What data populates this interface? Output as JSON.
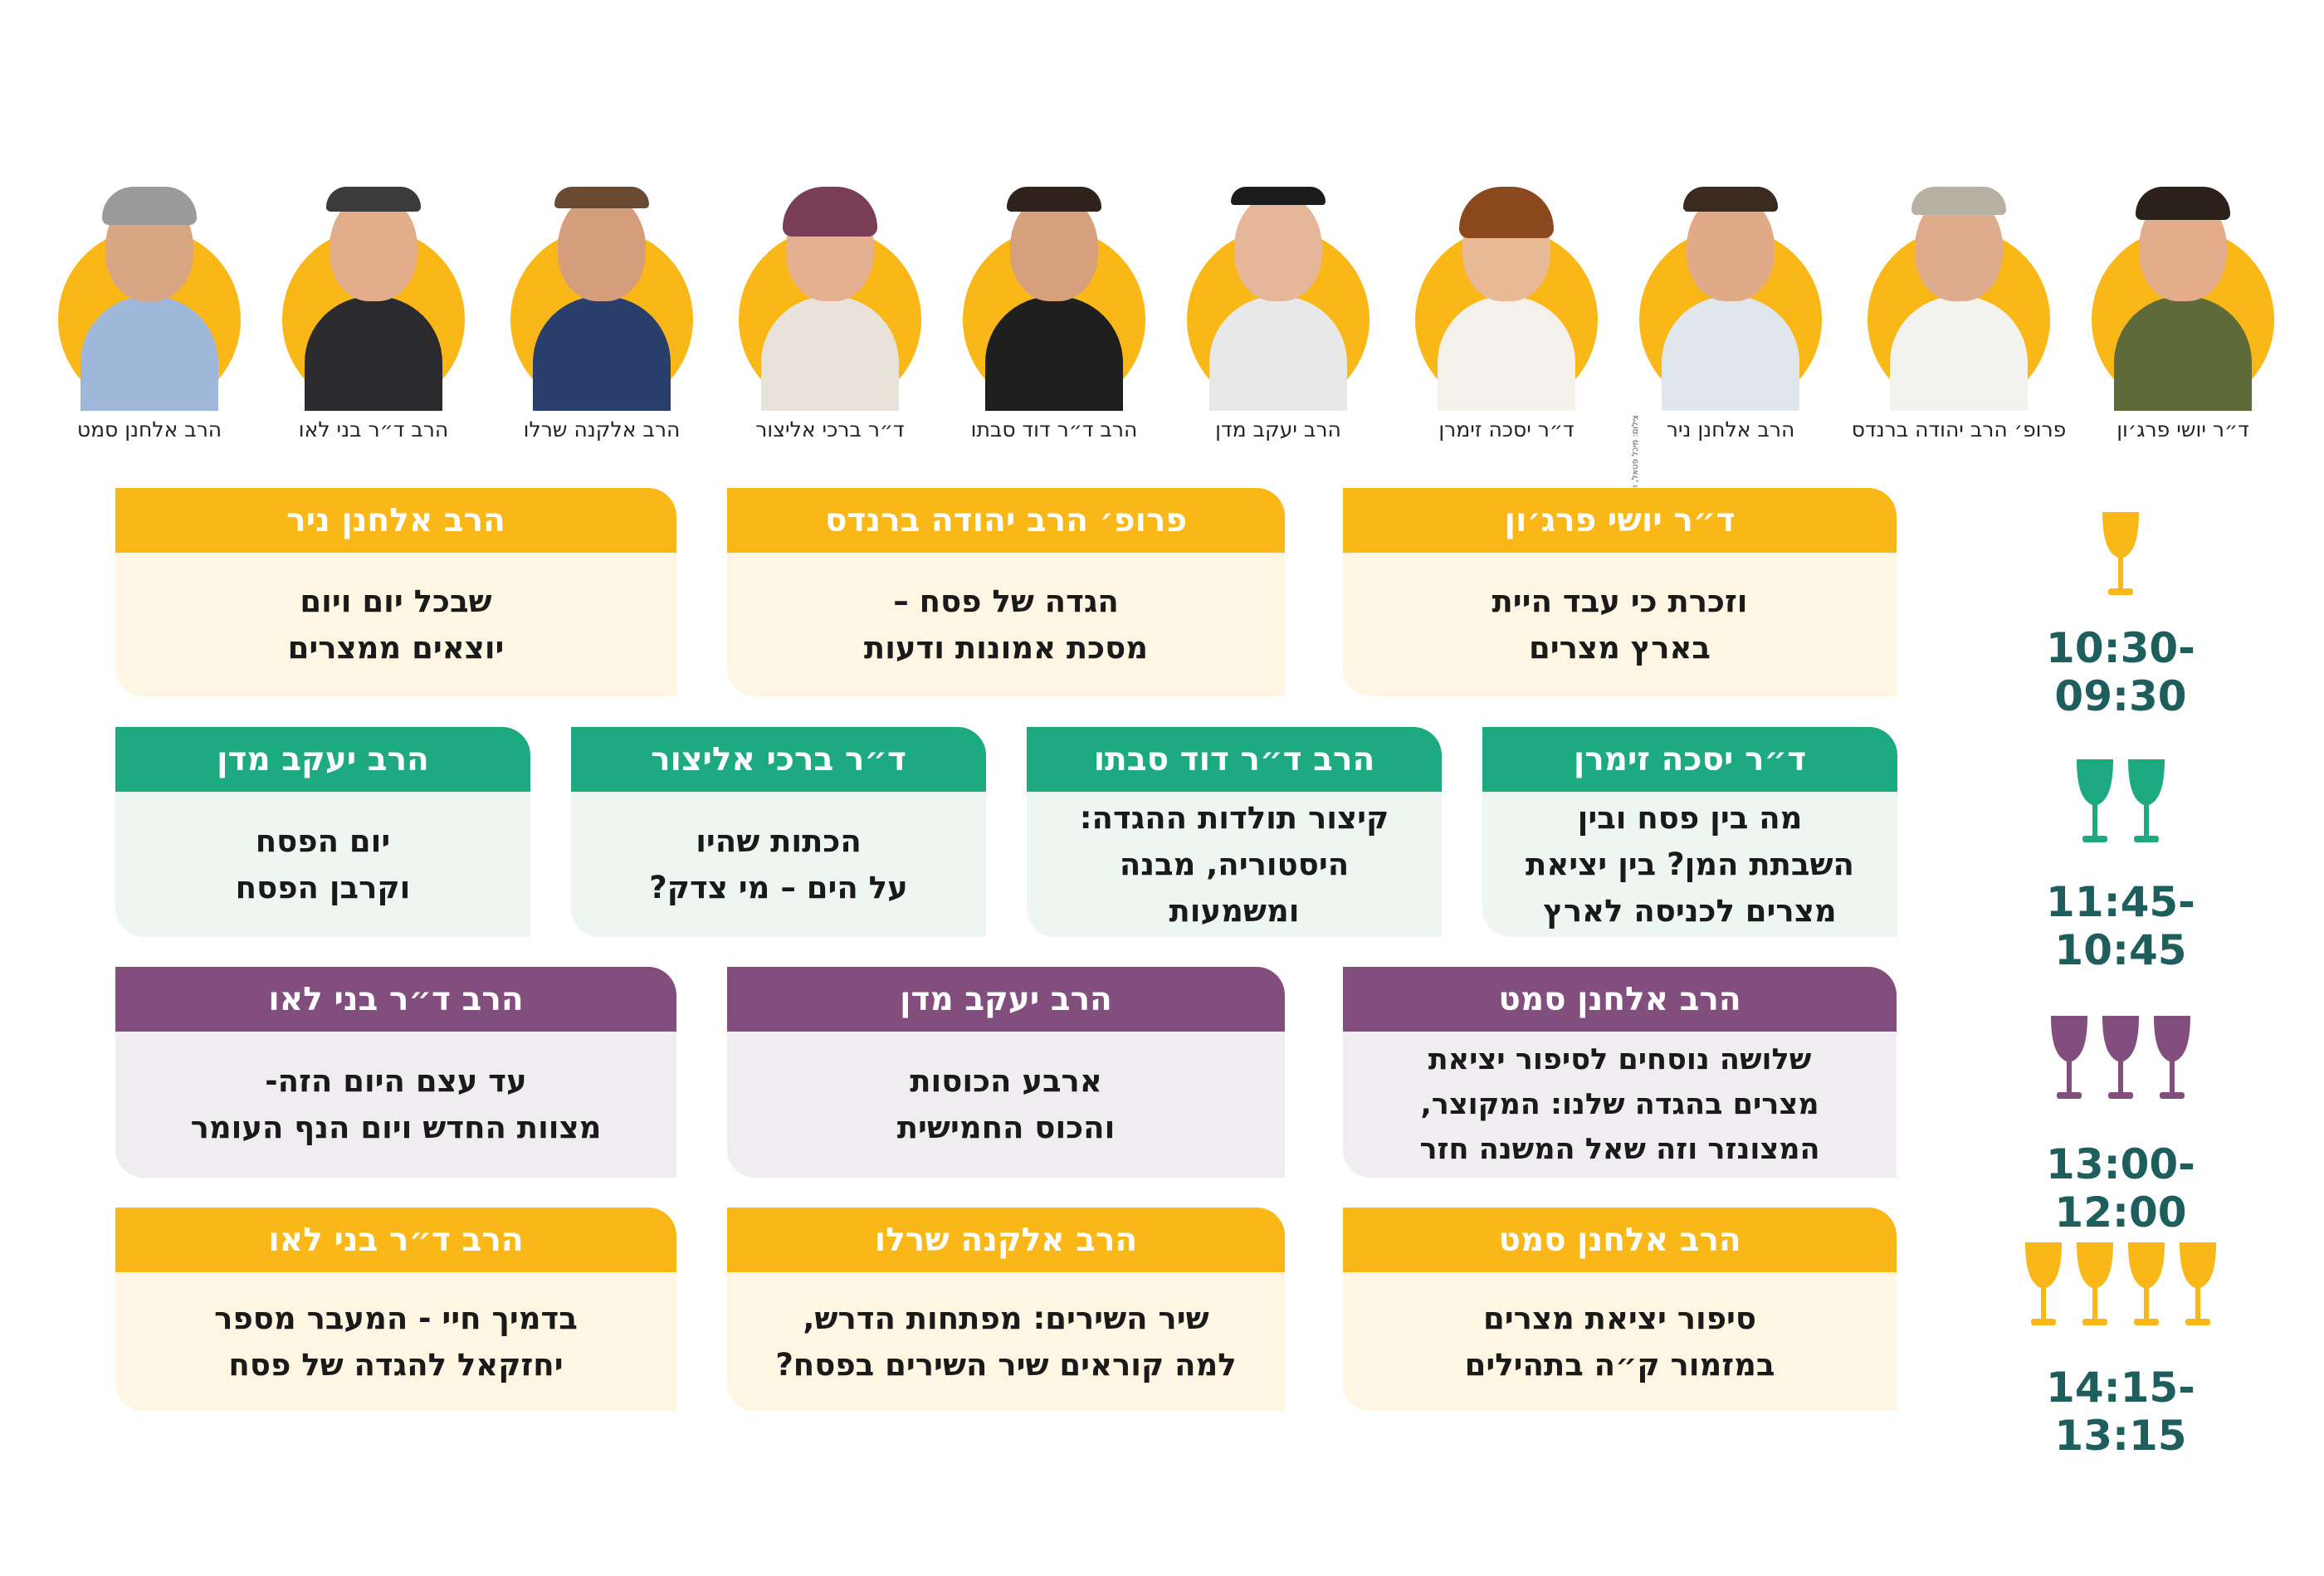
{
  "speakers": [
    {
      "name": "הרב אלחנן סמט"
    },
    {
      "name": "הרב ד״ר בני לאו"
    },
    {
      "name": "הרב אלקנה שרלו"
    },
    {
      "name": "ד״ר ברכי אליצור"
    },
    {
      "name": "הרב ד״ר דוד סבתו"
    },
    {
      "name": "הרב יעקב מדן"
    },
    {
      "name": "ד״ר יסכה זימרן"
    },
    {
      "name": "הרב אלחנן ניר"
    },
    {
      "name": "פרופ׳ הרב יהודה ברנדס"
    },
    {
      "name": "ד״ר יושי פרג׳ון"
    }
  ],
  "photo_credit": "צילום: מיכל פטאל, ויקיפדיה",
  "colors": {
    "yellow": "#f9b718",
    "green": "#1eaa81",
    "purple": "#814e7e",
    "time": "#1e5e5c"
  },
  "sessions": [
    {
      "time": "10:30-09:30",
      "glasses": 1,
      "color": "yellow",
      "talks": [
        {
          "speaker": "ד״ר יושי פרג׳ון",
          "title": "וזכרת כי עבד היית\nבארץ מצרים"
        },
        {
          "speaker": "פרופ׳ הרב יהודה ברנדס",
          "title": "הגדה של פסח –\nמסכת אמונות ודעות"
        },
        {
          "speaker": "הרב אלחנן ניר",
          "title": "שבכל יום ויום\nיוצאים ממצרים"
        }
      ]
    },
    {
      "time": "11:45-10:45",
      "glasses": 2,
      "color": "green",
      "talks": [
        {
          "speaker": "ד״ר יסכה זימרן",
          "title": "מה בין פסח ובין\nהשבתת המן? בין יציאת\nמצרים לכניסה לארץ"
        },
        {
          "speaker": "הרב ד״ר דוד סבתו",
          "title": "קיצור תולדות ההגדה:\nהיסטוריה, מבנה\nומשמעות"
        },
        {
          "speaker": "ד״ר ברכי אליצור",
          "title": "הכתות שהיו\nעל הים – מי צדק?"
        },
        {
          "speaker": "הרב יעקב מדן",
          "title": "יום הפסח\nוקרבן הפסח"
        }
      ]
    },
    {
      "time": "13:00-12:00",
      "glasses": 3,
      "color": "purple",
      "talks": [
        {
          "speaker": "הרב אלחנן סמט",
          "title": "שלושה נוסחים לסיפור יציאת\nמצרים בהגדה שלנו: המקוצר,\nהמצונזר וזה שאל המשנה חזר"
        },
        {
          "speaker": "הרב יעקב מדן",
          "title": "ארבע הכוסות\nוהכוס החמישית"
        },
        {
          "speaker": "הרב ד״ר בני לאו",
          "title": "עד עצם היום הזה-\nמצוות החדש ויום הנף העומר"
        }
      ]
    },
    {
      "time": "14:15-13:15",
      "glasses": 4,
      "color": "yellow",
      "talks": [
        {
          "speaker": "הרב אלחנן סמט",
          "title": "סיפור יציאת מצרים\nבמזמור ק״ה בתהילים"
        },
        {
          "speaker": "הרב אלקנה שרלו",
          "title": "שיר השירים: מפתחות הדרש,\nלמה קוראים שיר השירים בפסח?"
        },
        {
          "speaker": "הרב ד״ר בני לאו",
          "title": "בדמיך חיי - המעבר מספר\nיחזקאל להגדה של פסח"
        }
      ]
    }
  ]
}
